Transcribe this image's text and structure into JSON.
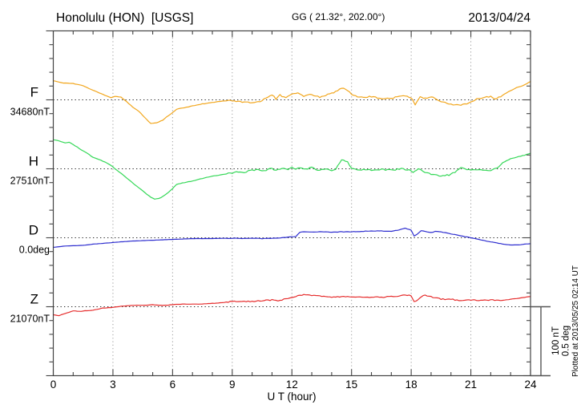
{
  "header": {
    "title": "Honolulu (HON)  [USGS]",
    "coords": "GG ( 21.32°, 202.00°)",
    "date": "2013/04/24"
  },
  "x_axis": {
    "title": "U T (hour)",
    "tick_labels": [
      "0",
      "3",
      "6",
      "9",
      "12",
      "15",
      "18",
      "21",
      "24"
    ],
    "range_hours": [
      0,
      24
    ]
  },
  "scale_bar": {
    "nt_label": "100 nT",
    "deg_label": "0.5 deg"
  },
  "footer": {
    "plotted_at": "Plotted at 2013/05/25 02:14 UT"
  },
  "chart_data": {
    "type": "line",
    "title": "Honolulu (HON) [USGS] magnetogram for 2013/04/24",
    "xlabel": "U T (hour)",
    "xlim": [
      0,
      24
    ],
    "grid": "dotted vertical gridlines every 3 hours; dotted horizontal baseline per channel",
    "legend_position": "left margin channel labels",
    "amplitude_scale": {
      "nT_per_division": 100,
      "deg_per_division": 0.5
    },
    "series": [
      {
        "id": "F",
        "label": "F",
        "base_label": "34680nT",
        "base": 34680,
        "unit": "nT",
        "color": "#f2a71e",
        "points": [
          [
            0,
            34708
          ],
          [
            0.5,
            34705
          ],
          [
            1,
            34704
          ],
          [
            1.5,
            34701
          ],
          [
            2,
            34694
          ],
          [
            2.5,
            34688
          ],
          [
            2.9,
            34683
          ],
          [
            3.1,
            34685
          ],
          [
            3.4,
            34684
          ],
          [
            3.7,
            34677
          ],
          [
            4,
            34669
          ],
          [
            4.3,
            34663
          ],
          [
            4.6,
            34654
          ],
          [
            4.9,
            34645
          ],
          [
            5.2,
            34646
          ],
          [
            5.5,
            34650
          ],
          [
            5.8,
            34657
          ],
          [
            6,
            34661
          ],
          [
            6.2,
            34666
          ],
          [
            6.5,
            34668
          ],
          [
            7,
            34671
          ],
          [
            7.5,
            34674
          ],
          [
            8,
            34676
          ],
          [
            8.5,
            34678
          ],
          [
            9,
            34679
          ],
          [
            9.5,
            34677
          ],
          [
            10,
            34676
          ],
          [
            10.4,
            34678
          ],
          [
            10.7,
            34682
          ],
          [
            11,
            34688
          ],
          [
            11.2,
            34681
          ],
          [
            11.4,
            34687
          ],
          [
            11.7,
            34683
          ],
          [
            12,
            34688
          ],
          [
            12.3,
            34690
          ],
          [
            12.6,
            34685
          ],
          [
            13,
            34688
          ],
          [
            13.4,
            34684
          ],
          [
            13.8,
            34688
          ],
          [
            14.1,
            34690
          ],
          [
            14.5,
            34698
          ],
          [
            14.8,
            34694
          ],
          [
            15.1,
            34686
          ],
          [
            15.5,
            34684
          ],
          [
            16,
            34685
          ],
          [
            16.5,
            34682
          ],
          [
            17,
            34682
          ],
          [
            17.5,
            34686
          ],
          [
            17.8,
            34685
          ],
          [
            18.05,
            34682
          ],
          [
            18.2,
            34673
          ],
          [
            18.45,
            34685
          ],
          [
            18.7,
            34682
          ],
          [
            19,
            34685
          ],
          [
            19.4,
            34678
          ],
          [
            19.8,
            34675
          ],
          [
            20.2,
            34672
          ],
          [
            20.6,
            34673
          ],
          [
            21,
            34676
          ],
          [
            21.3,
            34681
          ],
          [
            21.6,
            34683
          ],
          [
            22,
            34685
          ],
          [
            22.2,
            34681
          ],
          [
            22.5,
            34685
          ],
          [
            22.9,
            34692
          ],
          [
            23.3,
            34698
          ],
          [
            23.7,
            34702
          ],
          [
            24,
            34707
          ]
        ]
      },
      {
        "id": "H",
        "label": "H",
        "base_label": "27510nT",
        "base": 27510,
        "unit": "nT",
        "color": "#35d858",
        "points": [
          [
            0,
            27553
          ],
          [
            0.3,
            27551
          ],
          [
            0.6,
            27548
          ],
          [
            0.8,
            27549
          ],
          [
            1,
            27546
          ],
          [
            1.3,
            27540
          ],
          [
            1.7,
            27533
          ],
          [
            2,
            27527
          ],
          [
            2.3,
            27524
          ],
          [
            2.6,
            27520
          ],
          [
            2.9,
            27515
          ],
          [
            3.2,
            27508
          ],
          [
            3.5,
            27501
          ],
          [
            4,
            27489
          ],
          [
            4.3,
            27482
          ],
          [
            4.6,
            27475
          ],
          [
            4.9,
            27468
          ],
          [
            5.1,
            27465
          ],
          [
            5.4,
            27467
          ],
          [
            5.7,
            27473
          ],
          [
            6,
            27481
          ],
          [
            6.2,
            27487
          ],
          [
            6.5,
            27489
          ],
          [
            7,
            27492
          ],
          [
            7.4,
            27495
          ],
          [
            7.8,
            27498
          ],
          [
            8.2,
            27500
          ],
          [
            8.6,
            27502
          ],
          [
            9,
            27504
          ],
          [
            9.3,
            27506
          ],
          [
            9.6,
            27505
          ],
          [
            10,
            27508
          ],
          [
            10.3,
            27509
          ],
          [
            10.6,
            27507
          ],
          [
            11,
            27511
          ],
          [
            11.2,
            27507
          ],
          [
            11.5,
            27511
          ],
          [
            11.8,
            27508
          ],
          [
            12,
            27513
          ],
          [
            12.2,
            27509
          ],
          [
            12.4,
            27512
          ],
          [
            12.7,
            27509
          ],
          [
            13,
            27512
          ],
          [
            13.3,
            27508
          ],
          [
            13.7,
            27509
          ],
          [
            14,
            27508
          ],
          [
            14.2,
            27509
          ],
          [
            14.5,
            27524
          ],
          [
            14.8,
            27520
          ],
          [
            15,
            27511
          ],
          [
            15.3,
            27508
          ],
          [
            15.7,
            27509
          ],
          [
            16,
            27508
          ],
          [
            16.5,
            27509
          ],
          [
            17,
            27508
          ],
          [
            17.5,
            27510
          ],
          [
            17.9,
            27508
          ],
          [
            18.1,
            27504
          ],
          [
            18.35,
            27510
          ],
          [
            18.6,
            27506
          ],
          [
            18.9,
            27503
          ],
          [
            19.2,
            27501
          ],
          [
            19.5,
            27500
          ],
          [
            19.9,
            27501
          ],
          [
            20.2,
            27505
          ],
          [
            20.5,
            27512
          ],
          [
            20.8,
            27508
          ],
          [
            21.2,
            27509
          ],
          [
            21.6,
            27508
          ],
          [
            22,
            27508
          ],
          [
            22.3,
            27511
          ],
          [
            22.6,
            27519
          ],
          [
            23,
            27525
          ],
          [
            23.4,
            27528
          ],
          [
            23.7,
            27530
          ],
          [
            24,
            27533
          ]
        ]
      },
      {
        "id": "D",
        "label": "D",
        "base_label": "0.0deg",
        "base": 0.0,
        "unit": "deg",
        "color": "#2d2dcf",
        "points": [
          [
            0,
            -0.071
          ],
          [
            0.5,
            -0.062
          ],
          [
            1,
            -0.059
          ],
          [
            1.5,
            -0.056
          ],
          [
            2,
            -0.047
          ],
          [
            2.5,
            -0.041
          ],
          [
            3,
            -0.035
          ],
          [
            3.5,
            -0.029
          ],
          [
            4,
            -0.024
          ],
          [
            4.5,
            -0.021
          ],
          [
            5,
            -0.018
          ],
          [
            5.5,
            -0.015
          ],
          [
            6,
            -0.012
          ],
          [
            6.5,
            -0.009
          ],
          [
            7,
            -0.006
          ],
          [
            8,
            -0.006
          ],
          [
            9,
            -0.003
          ],
          [
            9.5,
            -0.006
          ],
          [
            10,
            -0.003
          ],
          [
            10.5,
            -0.006
          ],
          [
            11,
            -0.003
          ],
          [
            11.5,
            0
          ],
          [
            12,
            0.006
          ],
          [
            12.2,
            0.009
          ],
          [
            12.4,
            0.041
          ],
          [
            12.7,
            0.044
          ],
          [
            13,
            0.041
          ],
          [
            13.5,
            0.044
          ],
          [
            14,
            0.041
          ],
          [
            14.5,
            0.044
          ],
          [
            15,
            0.044
          ],
          [
            15.5,
            0.047
          ],
          [
            16,
            0.05
          ],
          [
            16.5,
            0.05
          ],
          [
            17,
            0.047
          ],
          [
            17.4,
            0.059
          ],
          [
            17.7,
            0.071
          ],
          [
            18,
            0.056
          ],
          [
            18.15,
            0.012
          ],
          [
            18.3,
            0.026
          ],
          [
            18.5,
            0.053
          ],
          [
            18.7,
            0.047
          ],
          [
            19,
            0.038
          ],
          [
            19.2,
            0.047
          ],
          [
            19.5,
            0.044
          ],
          [
            19.8,
            0.035
          ],
          [
            20.2,
            0.024
          ],
          [
            20.6,
            0.012
          ],
          [
            21,
            0
          ],
          [
            21.4,
            -0.012
          ],
          [
            21.8,
            -0.024
          ],
          [
            22.2,
            -0.035
          ],
          [
            22.6,
            -0.047
          ],
          [
            23,
            -0.053
          ],
          [
            23.4,
            -0.053
          ],
          [
            23.7,
            -0.047
          ],
          [
            24,
            -0.044
          ]
        ]
      },
      {
        "id": "Z",
        "label": "Z",
        "base_label": "21070nT",
        "base": 21070,
        "unit": "nT",
        "color": "#e62e2e",
        "points": [
          [
            0,
            21058
          ],
          [
            0.3,
            21057
          ],
          [
            0.6,
            21060
          ],
          [
            1,
            21064
          ],
          [
            1.3,
            21063
          ],
          [
            1.6,
            21064
          ],
          [
            2,
            21065
          ],
          [
            2.5,
            21068
          ],
          [
            3,
            21069
          ],
          [
            3.5,
            21071
          ],
          [
            4,
            21072
          ],
          [
            4.5,
            21072
          ],
          [
            5,
            21073
          ],
          [
            5.5,
            21072
          ],
          [
            6,
            21073
          ],
          [
            6.5,
            21074
          ],
          [
            7,
            21074
          ],
          [
            7.5,
            21074
          ],
          [
            8,
            21075
          ],
          [
            8.5,
            21076
          ],
          [
            9,
            21078
          ],
          [
            9.3,
            21077
          ],
          [
            9.6,
            21078
          ],
          [
            10,
            21078
          ],
          [
            10.5,
            21079
          ],
          [
            11,
            21080
          ],
          [
            11.3,
            21078
          ],
          [
            11.6,
            21081
          ],
          [
            12,
            21084
          ],
          [
            12.4,
            21087
          ],
          [
            12.7,
            21088
          ],
          [
            13,
            21087
          ],
          [
            13.4,
            21086
          ],
          [
            13.8,
            21084
          ],
          [
            14.2,
            21084
          ],
          [
            14.6,
            21085
          ],
          [
            15,
            21084
          ],
          [
            15.4,
            21085
          ],
          [
            15.8,
            21084
          ],
          [
            16.2,
            21084
          ],
          [
            16.6,
            21084
          ],
          [
            17,
            21085
          ],
          [
            17.4,
            21086
          ],
          [
            17.7,
            21088
          ],
          [
            18,
            21086
          ],
          [
            18.15,
            21077
          ],
          [
            18.4,
            21082
          ],
          [
            18.6,
            21087
          ],
          [
            18.9,
            21086
          ],
          [
            19.2,
            21083
          ],
          [
            19.6,
            21081
          ],
          [
            20,
            21081
          ],
          [
            20.5,
            21079
          ],
          [
            21,
            21080
          ],
          [
            21.5,
            21079
          ],
          [
            22,
            21080
          ],
          [
            22.5,
            21079
          ],
          [
            23,
            21081
          ],
          [
            23.5,
            21083
          ],
          [
            24,
            21085
          ]
        ]
      }
    ]
  }
}
